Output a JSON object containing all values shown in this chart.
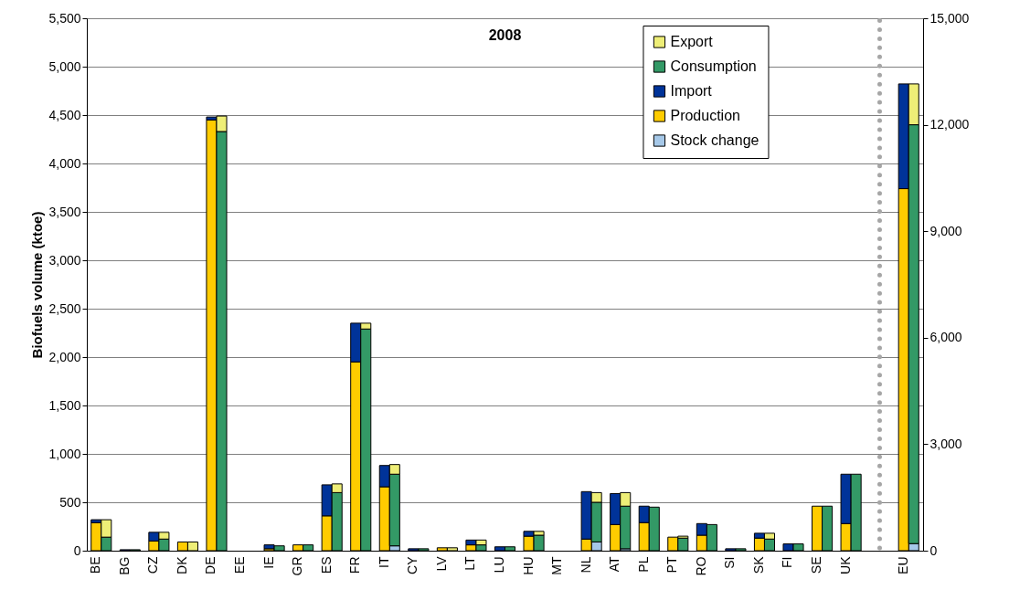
{
  "chart_data": {
    "type": "bar",
    "stacked": true,
    "title": "2008",
    "ylabel": "Biofuels volume (ktoe)",
    "categories": [
      "BE",
      null,
      "BG",
      null,
      "CZ",
      null,
      "DK",
      null,
      "DE",
      null,
      "EE",
      null,
      "IE",
      null,
      "GR",
      null,
      "ES",
      null,
      "FR",
      null,
      "IT",
      null,
      "CY",
      null,
      "LV",
      null,
      "LT",
      null,
      "LU",
      null,
      "HU",
      null,
      "MT",
      null,
      "NL",
      null,
      "AT",
      null,
      "PL",
      null,
      "PT",
      null,
      "RO",
      null,
      "SI",
      null,
      "SK",
      null,
      "FI",
      null,
      "SE",
      null,
      "UK",
      null,
      null,
      null,
      "EU",
      null
    ],
    "series": [
      {
        "name": "Stock change",
        "color": "#a6c8e8",
        "values": [
          null,
          null,
          null,
          null,
          null,
          null,
          null,
          null,
          null,
          null,
          null,
          null,
          null,
          null,
          null,
          null,
          null,
          null,
          null,
          null,
          null,
          50,
          null,
          null,
          null,
          null,
          null,
          null,
          null,
          null,
          null,
          null,
          null,
          null,
          null,
          90,
          null,
          20,
          null,
          null,
          null,
          null,
          null,
          null,
          null,
          null,
          null,
          null,
          null,
          null,
          null,
          null,
          null,
          null,
          null,
          null,
          null,
          null
        ]
      },
      {
        "name": "Production",
        "color": "#ffcc00",
        "values": [
          290,
          null,
          null,
          null,
          100,
          null,
          90,
          null,
          4450,
          null,
          null,
          null,
          20,
          null,
          60,
          null,
          360,
          null,
          1950,
          null,
          660,
          null,
          null,
          null,
          30,
          null,
          60,
          null,
          null,
          null,
          150,
          null,
          null,
          null,
          120,
          null,
          270,
          null,
          290,
          null,
          140,
          null,
          160,
          null,
          null,
          null,
          130,
          null,
          null,
          null,
          460,
          null,
          280,
          null,
          null,
          null,
          null,
          null
        ]
      },
      {
        "name": "Import",
        "color": "#003399",
        "values": [
          30,
          null,
          10,
          null,
          90,
          null,
          null,
          null,
          30,
          null,
          null,
          null,
          40,
          null,
          null,
          null,
          320,
          null,
          400,
          null,
          220,
          null,
          20,
          null,
          null,
          null,
          50,
          null,
          40,
          null,
          50,
          null,
          null,
          null,
          490,
          null,
          320,
          null,
          170,
          null,
          null,
          null,
          120,
          null,
          20,
          null,
          50,
          null,
          70,
          null,
          null,
          null,
          510,
          null,
          null,
          null,
          null,
          null
        ]
      },
      {
        "name": "Consumption",
        "color": "#339966",
        "values": [
          null,
          140,
          null,
          10,
          null,
          120,
          null,
          null,
          null,
          4330,
          null,
          null,
          null,
          50,
          null,
          60,
          null,
          600,
          null,
          2290,
          null,
          740,
          null,
          20,
          null,
          null,
          null,
          60,
          null,
          40,
          null,
          160,
          null,
          null,
          null,
          410,
          null,
          440,
          null,
          450,
          null,
          130,
          null,
          270,
          null,
          20,
          null,
          120,
          null,
          70,
          null,
          460,
          null,
          790,
          null,
          null,
          null,
          null
        ]
      },
      {
        "name": "Export",
        "color": "#eeee77",
        "values": [
          null,
          180,
          null,
          null,
          null,
          70,
          null,
          90,
          null,
          160,
          null,
          null,
          null,
          null,
          null,
          null,
          null,
          90,
          null,
          60,
          null,
          100,
          null,
          null,
          null,
          30,
          null,
          50,
          null,
          null,
          null,
          40,
          null,
          null,
          null,
          100,
          null,
          140,
          null,
          null,
          null,
          20,
          null,
          null,
          null,
          null,
          null,
          60,
          null,
          null,
          null,
          null,
          null,
          null,
          null,
          null,
          null,
          null
        ]
      },
      {
        "color": "#a6c8e8",
        "axis": "y2",
        "values": [
          null,
          null,
          null,
          null,
          null,
          null,
          null,
          null,
          null,
          null,
          null,
          null,
          null,
          null,
          null,
          null,
          null,
          null,
          null,
          null,
          null,
          null,
          null,
          null,
          null,
          null,
          null,
          null,
          null,
          null,
          null,
          null,
          null,
          null,
          null,
          null,
          null,
          null,
          null,
          null,
          null,
          null,
          null,
          null,
          null,
          null,
          null,
          null,
          null,
          null,
          null,
          null,
          null,
          null,
          null,
          null,
          null,
          200
        ]
      },
      {
        "color": "#ffcc00",
        "axis": "y2",
        "values": [
          null,
          null,
          null,
          null,
          null,
          null,
          null,
          null,
          null,
          null,
          null,
          null,
          null,
          null,
          null,
          null,
          null,
          null,
          null,
          null,
          null,
          null,
          null,
          null,
          null,
          null,
          null,
          null,
          null,
          null,
          null,
          null,
          null,
          null,
          null,
          null,
          null,
          null,
          null,
          null,
          null,
          null,
          null,
          null,
          null,
          null,
          null,
          null,
          null,
          null,
          null,
          null,
          null,
          null,
          null,
          null,
          10200,
          null
        ]
      },
      {
        "color": "#003399",
        "axis": "y2",
        "values": [
          null,
          null,
          null,
          null,
          null,
          null,
          null,
          null,
          null,
          null,
          null,
          null,
          null,
          null,
          null,
          null,
          null,
          null,
          null,
          null,
          null,
          null,
          null,
          null,
          null,
          null,
          null,
          null,
          null,
          null,
          null,
          null,
          null,
          null,
          null,
          null,
          null,
          null,
          null,
          null,
          null,
          null,
          null,
          null,
          null,
          null,
          null,
          null,
          null,
          null,
          null,
          null,
          null,
          null,
          null,
          null,
          2950,
          null
        ]
      },
      {
        "color": "#339966",
        "axis": "y2",
        "values": [
          null,
          null,
          null,
          null,
          null,
          null,
          null,
          null,
          null,
          null,
          null,
          null,
          null,
          null,
          null,
          null,
          null,
          null,
          null,
          null,
          null,
          null,
          null,
          null,
          null,
          null,
          null,
          null,
          null,
          null,
          null,
          null,
          null,
          null,
          null,
          null,
          null,
          null,
          null,
          null,
          null,
          null,
          null,
          null,
          null,
          null,
          null,
          null,
          null,
          null,
          null,
          null,
          null,
          null,
          null,
          null,
          null,
          11800
        ]
      },
      {
        "color": "#eeee77",
        "axis": "y2",
        "values": [
          null,
          null,
          null,
          null,
          null,
          null,
          null,
          null,
          null,
          null,
          null,
          null,
          null,
          null,
          null,
          null,
          null,
          null,
          null,
          null,
          null,
          null,
          null,
          null,
          null,
          null,
          null,
          null,
          null,
          null,
          null,
          null,
          null,
          null,
          null,
          null,
          null,
          null,
          null,
          null,
          null,
          null,
          null,
          null,
          null,
          null,
          null,
          null,
          null,
          null,
          null,
          null,
          null,
          null,
          null,
          null,
          null,
          1150
        ]
      }
    ],
    "ylim": [
      0,
      5500
    ],
    "yticks": [
      0,
      500,
      {
        "value": 1000,
        "label": "1,000"
      },
      {
        "value": 1500,
        "label": "1,500"
      },
      {
        "value": 2000,
        "label": "2,000"
      },
      {
        "value": 2500,
        "label": "2,500"
      },
      {
        "value": 3000,
        "label": "3,000"
      },
      {
        "value": 3500,
        "label": "3,500"
      },
      {
        "value": 4000,
        "label": "4,000"
      },
      {
        "value": 4500,
        "label": "4,500"
      },
      {
        "value": 5000,
        "label": "5,000"
      },
      {
        "value": 5500,
        "label": "5,500"
      }
    ],
    "y2lim": [
      0,
      15000
    ],
    "y2ticks": [
      0,
      {
        "value": 3000,
        "label": "3,000"
      },
      {
        "value": 6000,
        "label": "6,000"
      },
      {
        "value": 9000,
        "label": "9,000"
      },
      {
        "value": 12000,
        "label": "12,000"
      },
      {
        "value": 15000,
        "label": "15,000"
      }
    ],
    "grid": "y",
    "legend": "top right"
  }
}
